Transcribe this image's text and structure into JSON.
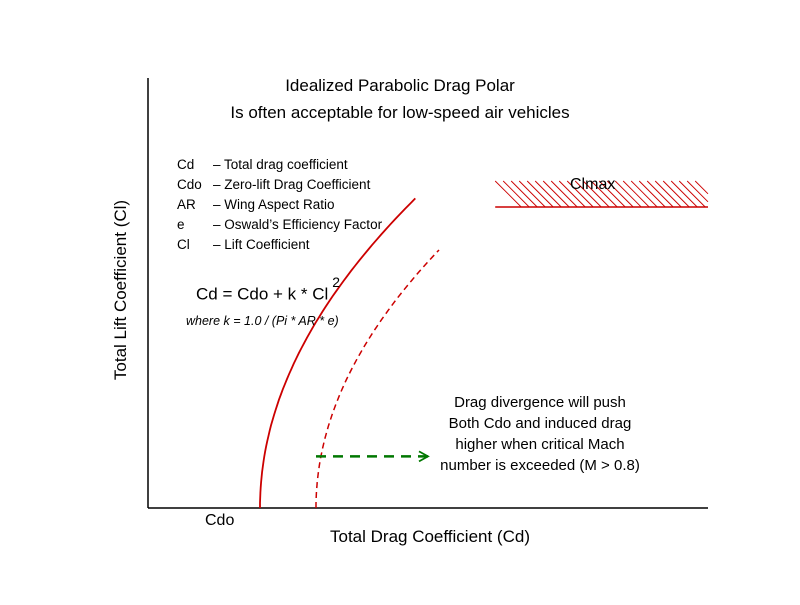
{
  "title_lines": [
    "Idealized Parabolic Drag Polar",
    "Is often acceptable for low-speed air vehicles"
  ],
  "legend": [
    {
      "symbol": "Cd",
      "desc": "– Total drag coefficient"
    },
    {
      "symbol": "Cdo",
      "desc": "– Zero-lift Drag Coefficient"
    },
    {
      "symbol": "AR",
      "desc": "– Wing Aspect Ratio"
    },
    {
      "symbol": "e",
      "desc": "– Oswald’s Efficiency Factor"
    },
    {
      "symbol": "Cl",
      "desc": "– Lift Coefficient"
    }
  ],
  "equation": {
    "main": "Cd = Cdo + k * Cl",
    "exponent": "2",
    "where": "where k = 1.0 / (Pi * AR * e)"
  },
  "note_lines": [
    "Drag divergence will push",
    "Both Cdo and induced drag",
    "higher when critical Mach",
    "number is exceeded (M > 0.8)"
  ],
  "colors": {
    "axes": "#000000",
    "polar": "#cc0000",
    "shift_arrow": "#007700"
  },
  "chart_data": {
    "type": "line",
    "title": "Idealized Parabolic Drag Polar",
    "subtitle": "Is often acceptable for low-speed air vehicles",
    "xlabel": "Total Drag Coefficient (Cd)",
    "ylabel": "Total Lift Coefficient (Cl)",
    "xlim": [
      0,
      1
    ],
    "ylim": [
      0,
      1
    ],
    "grid": false,
    "tick_labels": {
      "x": [
        "Cdo"
      ]
    },
    "series": [
      {
        "style": "solid",
        "cdo": 0.2,
        "k": 0.535,
        "cl_range": [
          0,
          0.72
        ]
      },
      {
        "style": "dashed",
        "cdo": 0.3,
        "k": 0.61,
        "cl_range": [
          0,
          0.6
        ]
      }
    ],
    "clmax": {
      "label": "Clmax",
      "cl": 0.7,
      "cd_range": [
        0.62,
        1.0
      ]
    },
    "annotations": [
      {
        "type": "arrow",
        "style": "dashed",
        "meaning": "drag divergence shift",
        "cd_from": 0.3,
        "cd_to": 0.5,
        "cl": 0.12
      }
    ]
  }
}
